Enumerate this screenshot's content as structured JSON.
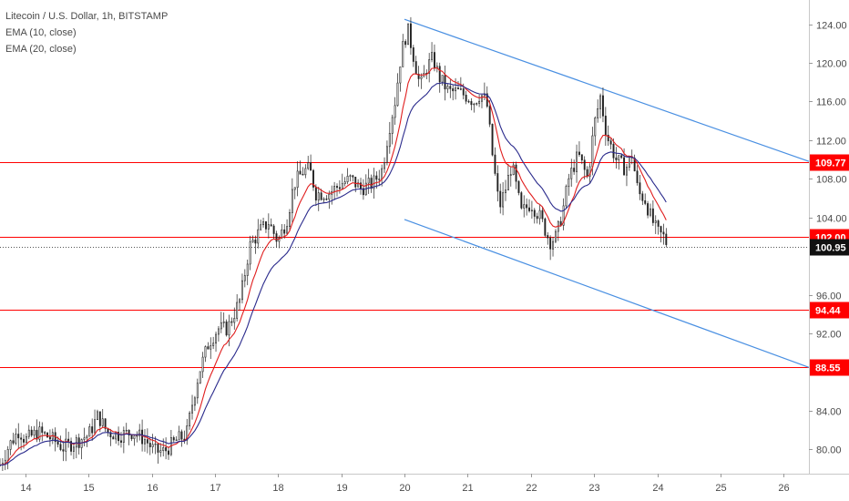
{
  "legend": {
    "title": "Litecoin / U.S. Dollar, 1h, BITSTAMP",
    "ema1": "EMA (10, close)",
    "ema2": "EMA (20, close)"
  },
  "chart_data": {
    "type": "candlestick",
    "symbol": "LTCUSD",
    "interval": "1h",
    "exchange": "BITSTAMP",
    "ylim": [
      77.5,
      126.5
    ],
    "xlim": [
      13.6,
      26.4
    ],
    "y_ticks": [
      "124.00",
      "120.00",
      "116.00",
      "112.00",
      "108.00",
      "104.00",
      "96.00",
      "92.00",
      "84.00",
      "80.00"
    ],
    "x_ticks": [
      {
        "label": "14",
        "x": 14
      },
      {
        "label": "15",
        "x": 15
      },
      {
        "label": "16",
        "x": 16
      },
      {
        "label": "17",
        "x": 17
      },
      {
        "label": "18",
        "x": 18
      },
      {
        "label": "19",
        "x": 19
      },
      {
        "label": "20",
        "x": 20
      },
      {
        "label": "21",
        "x": 21
      },
      {
        "label": "22",
        "x": 22
      },
      {
        "label": "23",
        "x": 23
      },
      {
        "label": "24",
        "x": 24
      },
      {
        "label": "25",
        "x": 25
      },
      {
        "label": "26",
        "x": 26
      }
    ],
    "current_price": {
      "value": 100.95,
      "label": "100.95"
    },
    "horizontal_levels": [
      {
        "value": 109.77,
        "label": "109.77",
        "color": "#ff0000"
      },
      {
        "value": 102.0,
        "label": "102.00",
        "color": "#ff0000"
      },
      {
        "value": 94.44,
        "label": "94.44",
        "color": "#ff0000"
      },
      {
        "value": 88.55,
        "label": "88.55",
        "color": "#ff0000"
      }
    ],
    "trendlines": [
      {
        "name": "upper-channel",
        "color": "#4a90e2",
        "points": [
          [
            20.0,
            124.5
          ],
          [
            26.4,
            109.8
          ]
        ]
      },
      {
        "name": "lower-channel",
        "color": "#4a90e2",
        "points": [
          [
            20.0,
            103.8
          ],
          [
            26.4,
            88.5
          ]
        ]
      }
    ],
    "ema_colors": {
      "ema10": "#e01e1e",
      "ema20": "#2a2a8c"
    },
    "close_path": [
      [
        13.6,
        78.4
      ],
      [
        13.75,
        80.5
      ],
      [
        13.9,
        82.0
      ],
      [
        14.0,
        81.0
      ],
      [
        14.2,
        81.8
      ],
      [
        14.4,
        81.2
      ],
      [
        14.6,
        80.2
      ],
      [
        14.8,
        80.8
      ],
      [
        15.0,
        81.5
      ],
      [
        15.15,
        83.5
      ],
      [
        15.3,
        81.8
      ],
      [
        15.5,
        81.5
      ],
      [
        15.7,
        81.8
      ],
      [
        15.9,
        81.0
      ],
      [
        16.05,
        79.8
      ],
      [
        16.2,
        79.8
      ],
      [
        16.4,
        81.0
      ],
      [
        16.55,
        81.5
      ],
      [
        16.65,
        85.0
      ],
      [
        16.75,
        88.0
      ],
      [
        16.9,
        91.0
      ],
      [
        17.05,
        92.5
      ],
      [
        17.2,
        92.5
      ],
      [
        17.4,
        95.5
      ],
      [
        17.55,
        101.0
      ],
      [
        17.7,
        102.5
      ],
      [
        17.85,
        103.5
      ],
      [
        18.0,
        101.5
      ],
      [
        18.15,
        104.0
      ],
      [
        18.25,
        107.5
      ],
      [
        18.4,
        108.8
      ],
      [
        18.5,
        109.0
      ],
      [
        18.6,
        106.5
      ],
      [
        18.8,
        106.5
      ],
      [
        19.0,
        107.5
      ],
      [
        19.15,
        108.0
      ],
      [
        19.3,
        107.0
      ],
      [
        19.5,
        107.5
      ],
      [
        19.65,
        109.0
      ],
      [
        19.75,
        113.0
      ],
      [
        19.85,
        116.0
      ],
      [
        19.95,
        121.0
      ],
      [
        20.05,
        123.5
      ],
      [
        20.15,
        120.5
      ],
      [
        20.25,
        117.5
      ],
      [
        20.35,
        119.5
      ],
      [
        20.45,
        120.5
      ],
      [
        20.55,
        118.5
      ],
      [
        20.7,
        117.0
      ],
      [
        20.85,
        117.0
      ],
      [
        21.0,
        116.5
      ],
      [
        21.1,
        116.0
      ],
      [
        21.2,
        116.8
      ],
      [
        21.3,
        116.0
      ],
      [
        21.4,
        110.0
      ],
      [
        21.5,
        105.0
      ],
      [
        21.6,
        107.0
      ],
      [
        21.7,
        109.5
      ],
      [
        21.85,
        104.5
      ],
      [
        22.0,
        105.5
      ],
      [
        22.15,
        104.0
      ],
      [
        22.3,
        101.5
      ],
      [
        22.4,
        102.0
      ],
      [
        22.5,
        104.5
      ],
      [
        22.6,
        108.0
      ],
      [
        22.75,
        110.5
      ],
      [
        22.9,
        108.0
      ],
      [
        23.0,
        113.5
      ],
      [
        23.1,
        116.5
      ],
      [
        23.2,
        112.5
      ],
      [
        23.35,
        110.0
      ],
      [
        23.5,
        109.0
      ],
      [
        23.6,
        110.5
      ],
      [
        23.7,
        106.5
      ],
      [
        23.8,
        106.0
      ],
      [
        23.9,
        104.0
      ],
      [
        24.0,
        102.5
      ],
      [
        24.1,
        102.0
      ],
      [
        24.18,
        100.9
      ]
    ]
  }
}
